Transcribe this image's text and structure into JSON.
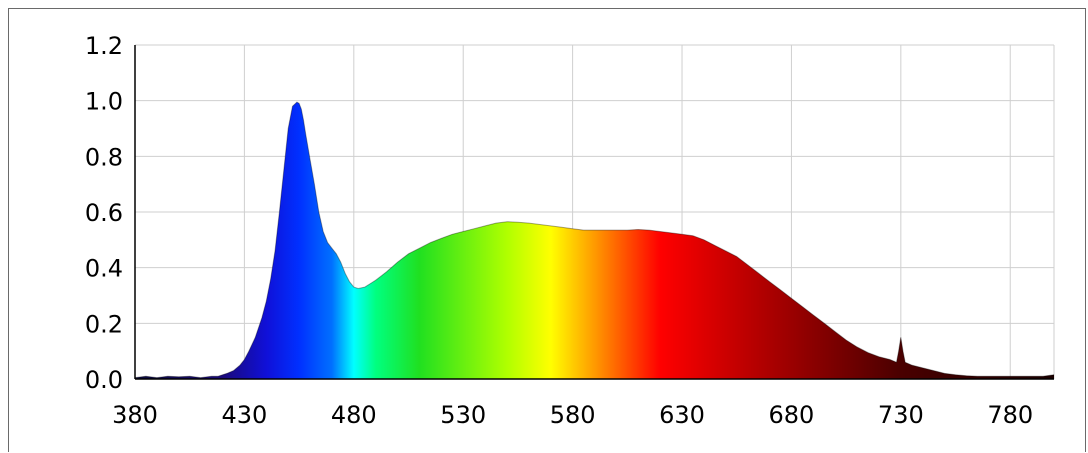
{
  "chart_data": {
    "type": "area",
    "title": "",
    "xlabel": "",
    "ylabel": "",
    "xlim": [
      380,
      800
    ],
    "ylim": [
      0,
      1.2
    ],
    "grid": true,
    "x_ticks": [
      "380",
      "430",
      "480",
      "530",
      "580",
      "630",
      "680",
      "730",
      "780"
    ],
    "y_ticks": [
      "0.0",
      "0.2",
      "0.4",
      "0.6",
      "0.8",
      "1.0",
      "1.2"
    ],
    "fill": "wavelength-rainbow",
    "series": [
      {
        "x": [
          380,
          385,
          390,
          395,
          400,
          405,
          410,
          415,
          418,
          420,
          422,
          425,
          428,
          430,
          432,
          435,
          438,
          440,
          442,
          444,
          446,
          448,
          450,
          452,
          454,
          455,
          456,
          457,
          458,
          460,
          462,
          464,
          466,
          468,
          470,
          472,
          474,
          476,
          478,
          480,
          482,
          485,
          488,
          490,
          495,
          500,
          505,
          510,
          515,
          520,
          525,
          530,
          535,
          540,
          545,
          550,
          555,
          560,
          565,
          570,
          575,
          580,
          585,
          590,
          595,
          600,
          605,
          610,
          615,
          620,
          625,
          630,
          635,
          640,
          645,
          650,
          655,
          660,
          665,
          670,
          675,
          680,
          685,
          690,
          695,
          700,
          705,
          710,
          715,
          720,
          725,
          728,
          729,
          730,
          731,
          732,
          735,
          740,
          745,
          750,
          755,
          760,
          765,
          770,
          775,
          780,
          785,
          790,
          795,
          800
        ],
        "values": [
          0.005,
          0.01,
          0.005,
          0.01,
          0.008,
          0.01,
          0.005,
          0.01,
          0.01,
          0.015,
          0.02,
          0.03,
          0.05,
          0.07,
          0.1,
          0.15,
          0.22,
          0.28,
          0.36,
          0.46,
          0.6,
          0.75,
          0.9,
          0.98,
          0.995,
          0.99,
          0.97,
          0.93,
          0.88,
          0.79,
          0.7,
          0.6,
          0.53,
          0.49,
          0.47,
          0.45,
          0.42,
          0.38,
          0.35,
          0.33,
          0.325,
          0.33,
          0.345,
          0.355,
          0.385,
          0.42,
          0.45,
          0.47,
          0.49,
          0.505,
          0.52,
          0.53,
          0.54,
          0.55,
          0.56,
          0.565,
          0.563,
          0.56,
          0.555,
          0.55,
          0.545,
          0.54,
          0.535,
          0.535,
          0.535,
          0.535,
          0.535,
          0.537,
          0.535,
          0.53,
          0.525,
          0.52,
          0.515,
          0.5,
          0.48,
          0.46,
          0.44,
          0.41,
          0.38,
          0.35,
          0.32,
          0.29,
          0.26,
          0.23,
          0.2,
          0.17,
          0.14,
          0.115,
          0.095,
          0.08,
          0.07,
          0.06,
          0.1,
          0.15,
          0.1,
          0.06,
          0.05,
          0.04,
          0.03,
          0.02,
          0.015,
          0.012,
          0.01,
          0.01,
          0.01,
          0.01,
          0.01,
          0.01,
          0.01,
          0.015
        ]
      }
    ]
  }
}
